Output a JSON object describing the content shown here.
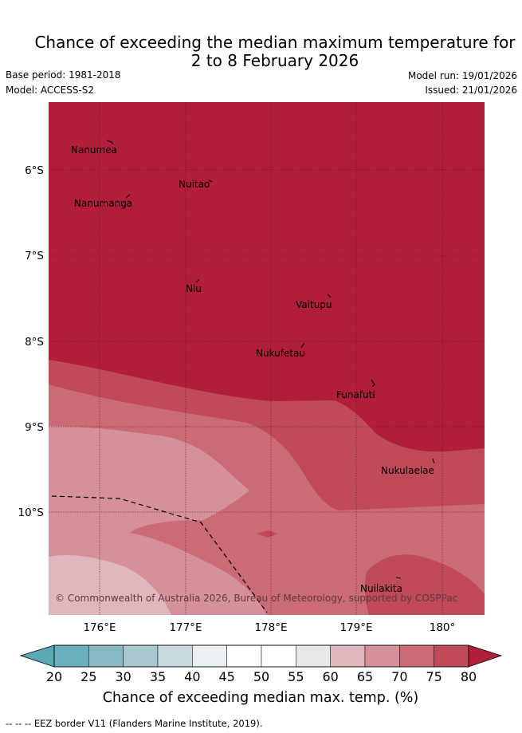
{
  "title_line1": "Chance of exceeding the median maximum temperature for",
  "title_line2": "2 to 8 February 2026",
  "base_period": "Base period: 1981-2018",
  "model": "Model: ACCESS-S2",
  "model_run": "Model run: 19/01/2026",
  "issued": "Issued: 21/01/2026",
  "map": {
    "lon_labels": [
      "176°E",
      "177°E",
      "178°E",
      "179°E",
      "180°"
    ],
    "lat_labels": [
      "6°S",
      "7°S",
      "8°S",
      "9°S",
      "10°S"
    ],
    "places": [
      "Nanumea",
      "Nuitao",
      "Nanumanga",
      "Niu",
      "Vaitupu",
      "Nukufetau",
      "Funafuti",
      "Nukulaelae",
      "Nuilakita"
    ],
    "copyright": "© Commonwealth of Australia 2026, Bureau of Meteorology, supported by COSPPac"
  },
  "colorbar": {
    "ticks": [
      "20",
      "25",
      "30",
      "35",
      "40",
      "45",
      "50",
      "55",
      "60",
      "65",
      "70",
      "75",
      "80"
    ],
    "colors": [
      "#6aafbc",
      "#8ab9c4",
      "#a9c8cd",
      "#c9d9dd",
      "#eaf0f2",
      "#ffffff",
      "#ffffff",
      "#e8e8e8",
      "#e0b7bd",
      "#d6909a",
      "#cb6b76",
      "#c04a57"
    ],
    "under_color": "#5ca9b6",
    "over_color": "#b11e3a",
    "label": "Chance of exceeding median max. temp. (%)"
  },
  "footer": "--  --  -- EEZ border V11 (Flanders Marine Institute, 2019)."
}
